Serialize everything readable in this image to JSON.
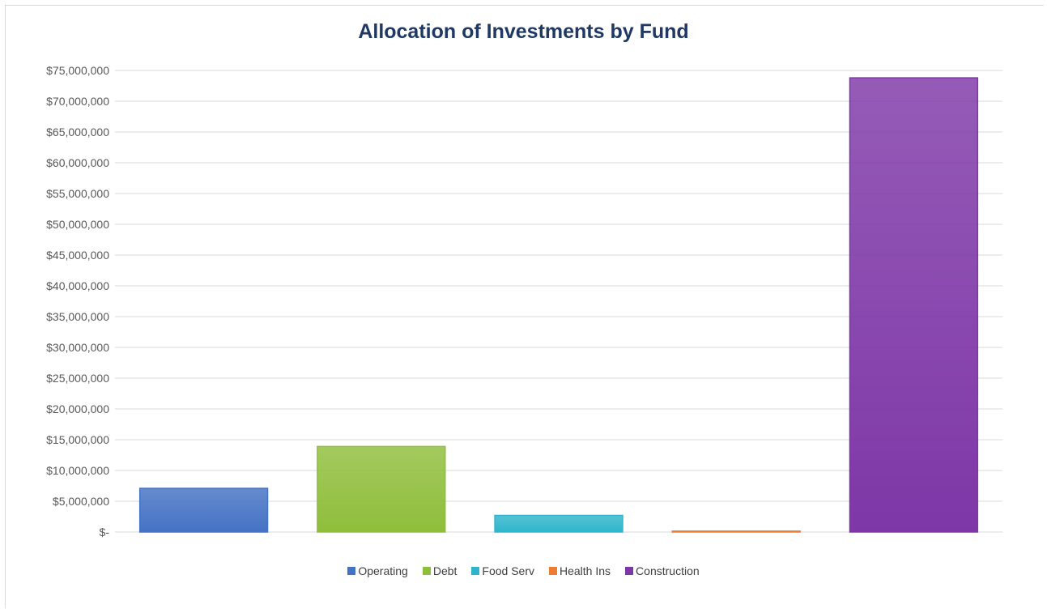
{
  "chart_data": {
    "type": "bar",
    "title": "Allocation of Investments by Fund",
    "xlabel": "",
    "ylabel": "",
    "ylim": [
      0,
      75000000
    ],
    "ytick_step": 5000000,
    "yticks": [
      "$-",
      "$5,000,000",
      "$10,000,000",
      "$15,000,000",
      "$20,000,000",
      "$25,000,000",
      "$30,000,000",
      "$35,000,000",
      "$40,000,000",
      "$45,000,000",
      "$50,000,000",
      "$55,000,000",
      "$60,000,000",
      "$65,000,000",
      "$70,000,000",
      "$75,000,000"
    ],
    "grid": true,
    "legend_position": "bottom",
    "categories": [
      "Operating",
      "Debt",
      "Food Serv",
      "Health Ins",
      "Construction"
    ],
    "values": [
      7100000,
      13900000,
      2700000,
      150000,
      73800000
    ],
    "colors": [
      "#4472c4",
      "#8fbe3b",
      "#2fb5cb",
      "#ed7d31",
      "#7e37a7"
    ]
  }
}
